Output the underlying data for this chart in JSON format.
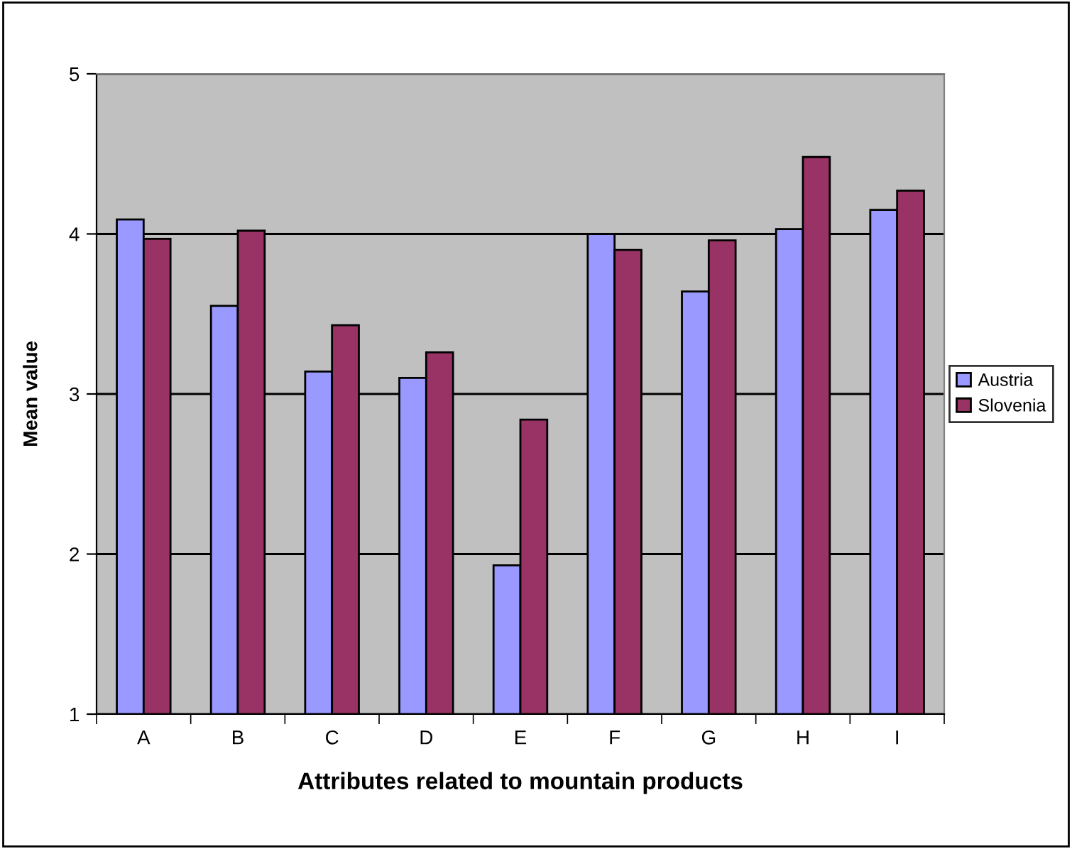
{
  "chart_data": {
    "type": "bar",
    "xlabel": "Attributes related to mountain products",
    "ylabel": "Mean value",
    "categories": [
      "A",
      "B",
      "C",
      "D",
      "E",
      "F",
      "G",
      "H",
      "I"
    ],
    "series": [
      {
        "name": "Austria",
        "color": "#9999ff",
        "values": [
          4.09,
          3.55,
          3.14,
          3.1,
          1.93,
          4.0,
          3.64,
          4.03,
          4.15
        ]
      },
      {
        "name": "Slovenia",
        "color": "#993366",
        "values": [
          3.97,
          4.02,
          3.43,
          3.26,
          2.84,
          3.9,
          3.96,
          4.48,
          4.27
        ]
      }
    ],
    "ylim": [
      1,
      5
    ],
    "yticks": [
      1,
      2,
      3,
      4,
      5
    ],
    "grid": "y",
    "legend": "right"
  }
}
